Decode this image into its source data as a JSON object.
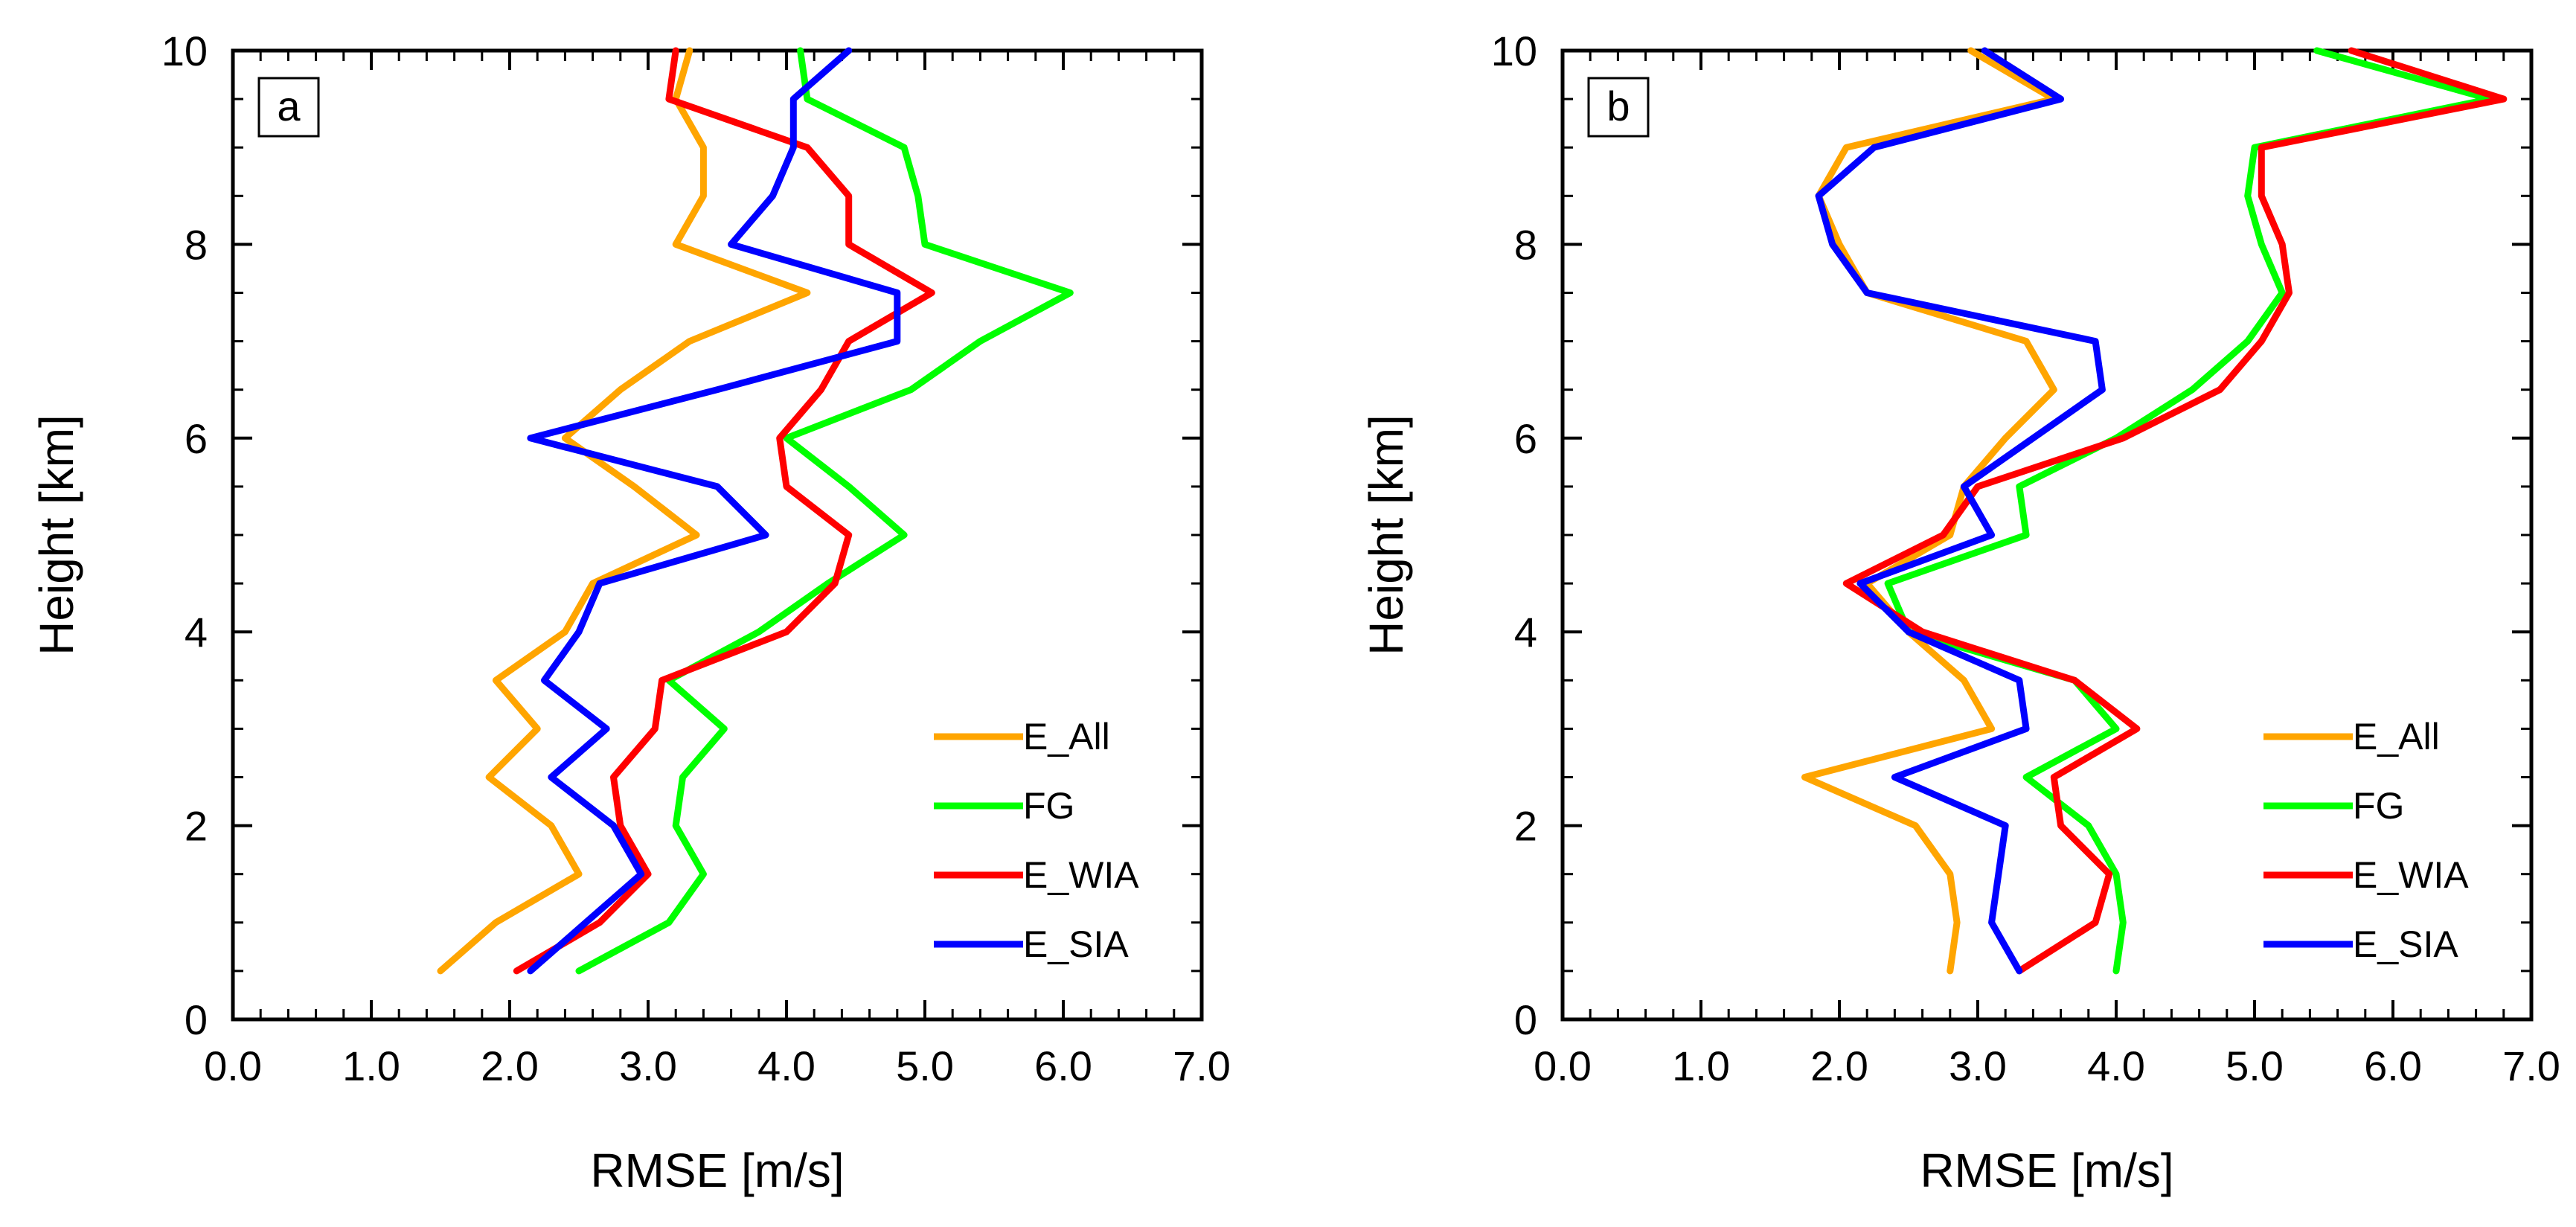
{
  "chart_data": [
    {
      "type": "line",
      "panel_label": "a",
      "xlabel": "RMSE [m/s]",
      "ylabel": "Height [km]",
      "xlim": [
        0,
        7
      ],
      "ylim": [
        0,
        10
      ],
      "x_ticks": [
        "0.0",
        "1.0",
        "2.0",
        "3.0",
        "4.0",
        "5.0",
        "6.0",
        "7.0"
      ],
      "y_ticks": [
        "0",
        "2",
        "4",
        "6",
        "8",
        "10"
      ],
      "legend_position": "bottom-right",
      "series": [
        {
          "name": "E_All",
          "color": "#ffa500",
          "x": [
            1.5,
            1.9,
            2.5,
            2.3,
            1.85,
            2.2,
            1.9,
            2.4,
            2.6,
            3.35,
            2.9,
            2.4,
            2.8,
            3.3,
            4.15,
            3.2,
            3.4,
            3.4,
            3.2,
            3.3
          ],
          "y": [
            0.5,
            1.0,
            1.5,
            2.0,
            2.5,
            3.0,
            3.5,
            4.0,
            4.5,
            5.0,
            5.5,
            6.0,
            6.5,
            7.0,
            7.5,
            8.0,
            8.5,
            9.0,
            9.5,
            10.0
          ]
        },
        {
          "name": "FG",
          "color": "#00ff00",
          "x": [
            2.5,
            3.15,
            3.4,
            3.2,
            3.25,
            3.55,
            3.15,
            3.8,
            4.3,
            4.85,
            4.45,
            4.0,
            4.9,
            5.4,
            6.05,
            5.0,
            4.95,
            4.85,
            4.15,
            4.1
          ],
          "y": [
            0.5,
            1.0,
            1.5,
            2.0,
            2.5,
            3.0,
            3.5,
            4.0,
            4.5,
            5.0,
            5.5,
            6.0,
            6.5,
            7.0,
            7.5,
            8.0,
            8.5,
            9.0,
            9.5,
            10.0
          ]
        },
        {
          "name": "E_WIA",
          "color": "#ff0000",
          "x": [
            2.05,
            2.65,
            3.0,
            2.8,
            2.75,
            3.05,
            3.1,
            4.0,
            4.35,
            4.45,
            4.0,
            3.95,
            4.25,
            4.45,
            5.05,
            4.45,
            4.45,
            4.15,
            3.15,
            3.2
          ],
          "y": [
            0.5,
            1.0,
            1.5,
            2.0,
            2.5,
            3.0,
            3.5,
            4.0,
            4.5,
            5.0,
            5.5,
            6.0,
            6.5,
            7.0,
            7.5,
            8.0,
            8.5,
            9.0,
            9.5,
            10.0
          ]
        },
        {
          "name": "E_SIA",
          "color": "#0000ff",
          "x": [
            2.15,
            2.55,
            2.95,
            2.75,
            2.3,
            2.7,
            2.25,
            2.5,
            2.65,
            3.85,
            3.5,
            2.15,
            3.5,
            4.8,
            4.8,
            3.6,
            3.9,
            4.05,
            4.05,
            4.45
          ],
          "y": [
            0.5,
            1.0,
            1.5,
            2.0,
            2.5,
            3.0,
            3.5,
            4.0,
            4.5,
            5.0,
            5.5,
            6.0,
            6.5,
            7.0,
            7.5,
            8.0,
            8.5,
            9.0,
            9.5,
            10.0
          ]
        }
      ]
    },
    {
      "type": "line",
      "panel_label": "b",
      "xlabel": "RMSE [m/s]",
      "ylabel": "Height [km]",
      "xlim": [
        0,
        7
      ],
      "ylim": [
        0,
        10
      ],
      "x_ticks": [
        "0.0",
        "1.0",
        "2.0",
        "3.0",
        "4.0",
        "5.0",
        "6.0",
        "7.0"
      ],
      "y_ticks": [
        "0",
        "2",
        "4",
        "6",
        "8",
        "10"
      ],
      "legend_position": "bottom-right",
      "series": [
        {
          "name": "E_All",
          "color": "#ffa500",
          "x": [
            2.8,
            2.85,
            2.8,
            2.55,
            1.75,
            3.1,
            2.9,
            2.5,
            2.2,
            2.8,
            2.9,
            3.2,
            3.55,
            3.35,
            2.2,
            2.0,
            1.85,
            2.05,
            3.55,
            2.95
          ],
          "y": [
            0.5,
            1.0,
            1.5,
            2.0,
            2.5,
            3.0,
            3.5,
            4.0,
            4.5,
            5.0,
            5.5,
            6.0,
            6.5,
            7.0,
            7.5,
            8.0,
            8.5,
            9.0,
            9.5,
            10.0
          ]
        },
        {
          "name": "FG",
          "color": "#00ff00",
          "x": [
            4.0,
            4.05,
            4.0,
            3.8,
            3.35,
            4.0,
            3.7,
            2.5,
            2.35,
            3.35,
            3.3,
            4.0,
            4.55,
            4.95,
            5.2,
            5.05,
            4.95,
            5.0,
            6.7,
            5.45
          ],
          "y": [
            0.5,
            1.0,
            1.5,
            2.0,
            2.5,
            3.0,
            3.5,
            4.0,
            4.5,
            5.0,
            5.5,
            6.0,
            6.5,
            7.0,
            7.5,
            8.0,
            8.5,
            9.0,
            9.5,
            10.0
          ]
        },
        {
          "name": "E_WIA",
          "color": "#ff0000",
          "x": [
            3.3,
            3.85,
            3.95,
            3.6,
            3.55,
            4.15,
            3.7,
            2.6,
            2.05,
            2.75,
            3.0,
            4.05,
            4.75,
            5.05,
            5.25,
            5.2,
            5.05,
            5.05,
            6.8,
            5.7
          ],
          "y": [
            0.5,
            1.0,
            1.5,
            2.0,
            2.5,
            3.0,
            3.5,
            4.0,
            4.5,
            5.0,
            5.5,
            6.0,
            6.5,
            7.0,
            7.5,
            8.0,
            8.5,
            9.0,
            9.5,
            10.0
          ]
        },
        {
          "name": "E_SIA",
          "color": "#0000ff",
          "x": [
            3.3,
            3.1,
            3.15,
            3.2,
            2.4,
            3.35,
            3.3,
            2.5,
            2.15,
            3.1,
            2.9,
            3.4,
            3.9,
            3.85,
            2.2,
            1.95,
            1.85,
            2.25,
            3.6,
            3.05
          ],
          "y": [
            0.5,
            1.0,
            1.5,
            2.0,
            2.5,
            3.0,
            3.5,
            4.0,
            4.5,
            5.0,
            5.5,
            6.0,
            6.5,
            7.0,
            7.5,
            8.0,
            8.5,
            9.0,
            9.5,
            10.0
          ]
        }
      ]
    }
  ]
}
